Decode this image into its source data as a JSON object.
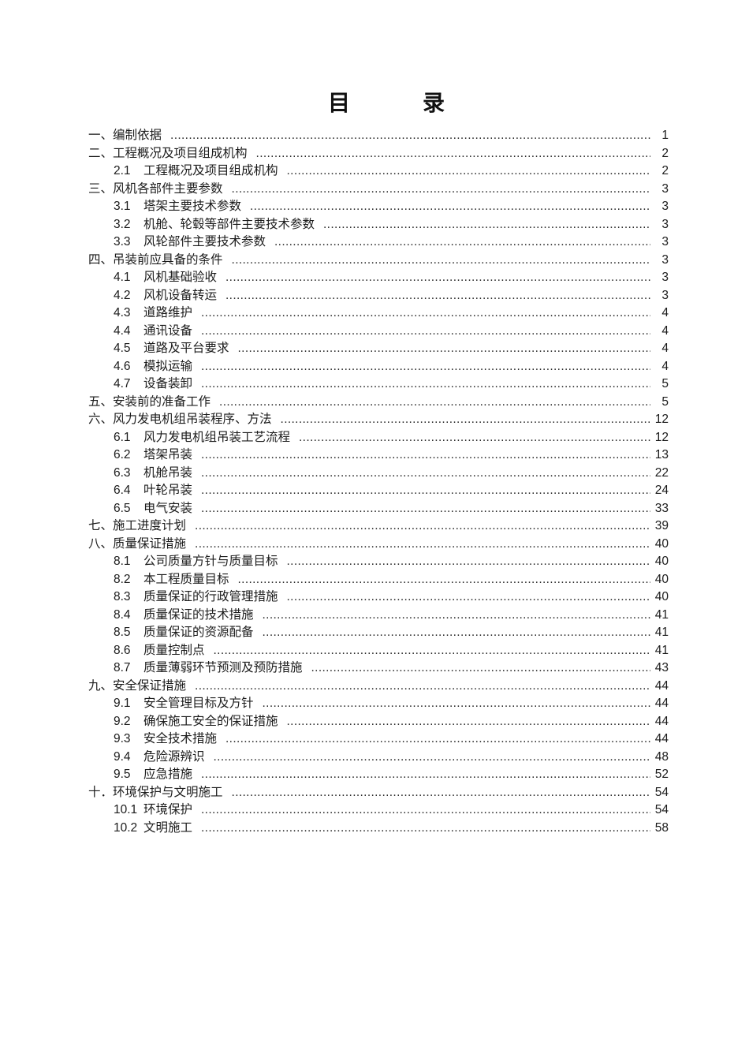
{
  "document": {
    "title": {
      "left": "目",
      "right": "录"
    },
    "colors": {
      "background": "#ffffff",
      "text": "#1b1b1b",
      "leader_dots": "#2a2a2a"
    },
    "toc": {
      "leader_char": ".",
      "entries": [
        {
          "num": "一、",
          "label": "编制依据",
          "page": "1",
          "level": 1
        },
        {
          "num": "二、",
          "label": "工程概况及项目组成机构",
          "page": "2",
          "level": 1
        },
        {
          "num": "2.1",
          "label": "工程概况及项目组成机构",
          "page": "2",
          "level": 2
        },
        {
          "num": "三、",
          "label": "风机各部件主要参数",
          "page": "3",
          "level": 1
        },
        {
          "num": "3.1",
          "label": "塔架主要技术参数",
          "page": "3",
          "level": 2
        },
        {
          "num": "3.2",
          "label": "机舱、轮毂等部件主要技术参数",
          "page": "3",
          "level": 2
        },
        {
          "num": "3.3",
          "label": "风轮部件主要技术参数",
          "page": "3",
          "level": 2
        },
        {
          "num": "四、",
          "label": "吊装前应具备的条件",
          "page": "3",
          "level": 1
        },
        {
          "num": "4.1",
          "label": "风机基础验收",
          "page": "3",
          "level": 2
        },
        {
          "num": "4.2",
          "label": "风机设备转运",
          "page": "3",
          "level": 2
        },
        {
          "num": "4.3",
          "label": "道路维护",
          "page": "4",
          "level": 2
        },
        {
          "num": "4.4",
          "label": "通讯设备",
          "page": "4",
          "level": 2
        },
        {
          "num": "4.5",
          "label": "道路及平台要求",
          "page": "4",
          "level": 2
        },
        {
          "num": "4.6",
          "label": "模拟运输",
          "page": "4",
          "level": 2
        },
        {
          "num": "4.7",
          "label": "设备装卸",
          "page": "5",
          "level": 2
        },
        {
          "num": "五、",
          "label": "安装前的准备工作",
          "page": "5",
          "level": 1
        },
        {
          "num": "六、",
          "label": "风力发电机组吊装程序、方法",
          "page": "12",
          "level": 1
        },
        {
          "num": "6.1",
          "label": "风力发电机组吊装工艺流程",
          "page": "12",
          "level": 2
        },
        {
          "num": "6.2",
          "label": "塔架吊装",
          "page": "13",
          "level": 2
        },
        {
          "num": "6.3",
          "label": "机舱吊装",
          "page": "22",
          "level": 2
        },
        {
          "num": "6.4",
          "label": "叶轮吊装",
          "page": "24",
          "level": 2
        },
        {
          "num": "6.5",
          "label": "电气安装",
          "page": "33",
          "level": 2
        },
        {
          "num": "七、",
          "label": "施工进度计划",
          "page": "39",
          "level": 1
        },
        {
          "num": "八、",
          "label": "质量保证措施",
          "page": "40",
          "level": 1
        },
        {
          "num": "8.1",
          "label": "公司质量方针与质量目标",
          "page": "40",
          "level": 2
        },
        {
          "num": "8.2",
          "label": "本工程质量目标",
          "page": "40",
          "level": 2
        },
        {
          "num": "8.3",
          "label": "质量保证的行政管理措施",
          "page": "40",
          "level": 2
        },
        {
          "num": "8.4",
          "label": "质量保证的技术措施",
          "page": "41",
          "level": 2
        },
        {
          "num": "8.5",
          "label": "质量保证的资源配备",
          "page": "41",
          "level": 2
        },
        {
          "num": "8.6",
          "label": "质量控制点",
          "page": "41",
          "level": 2
        },
        {
          "num": "8.7",
          "label": "质量薄弱环节预测及预防措施",
          "page": "43",
          "level": 2
        },
        {
          "num": "九、",
          "label": "安全保证措施",
          "page": "44",
          "level": 1
        },
        {
          "num": "9.1",
          "label": "安全管理目标及方针",
          "page": "44",
          "level": 2
        },
        {
          "num": "9.2",
          "label": "确保施工安全的保证措施",
          "page": "44",
          "level": 2
        },
        {
          "num": "9.3",
          "label": "安全技术措施",
          "page": "44",
          "level": 2
        },
        {
          "num": "9.4",
          "label": "危险源辨识",
          "page": "48",
          "level": 2
        },
        {
          "num": "9.5",
          "label": "应急措施",
          "page": "52",
          "level": 2
        },
        {
          "num": "十．",
          "label": "环境保护与文明施工",
          "page": "54",
          "level": 1
        },
        {
          "num": "10.1",
          "label": "环境保护",
          "page": "54",
          "level": 2
        },
        {
          "num": "10.2",
          "label": "文明施工",
          "page": "58",
          "level": 2
        }
      ]
    }
  }
}
